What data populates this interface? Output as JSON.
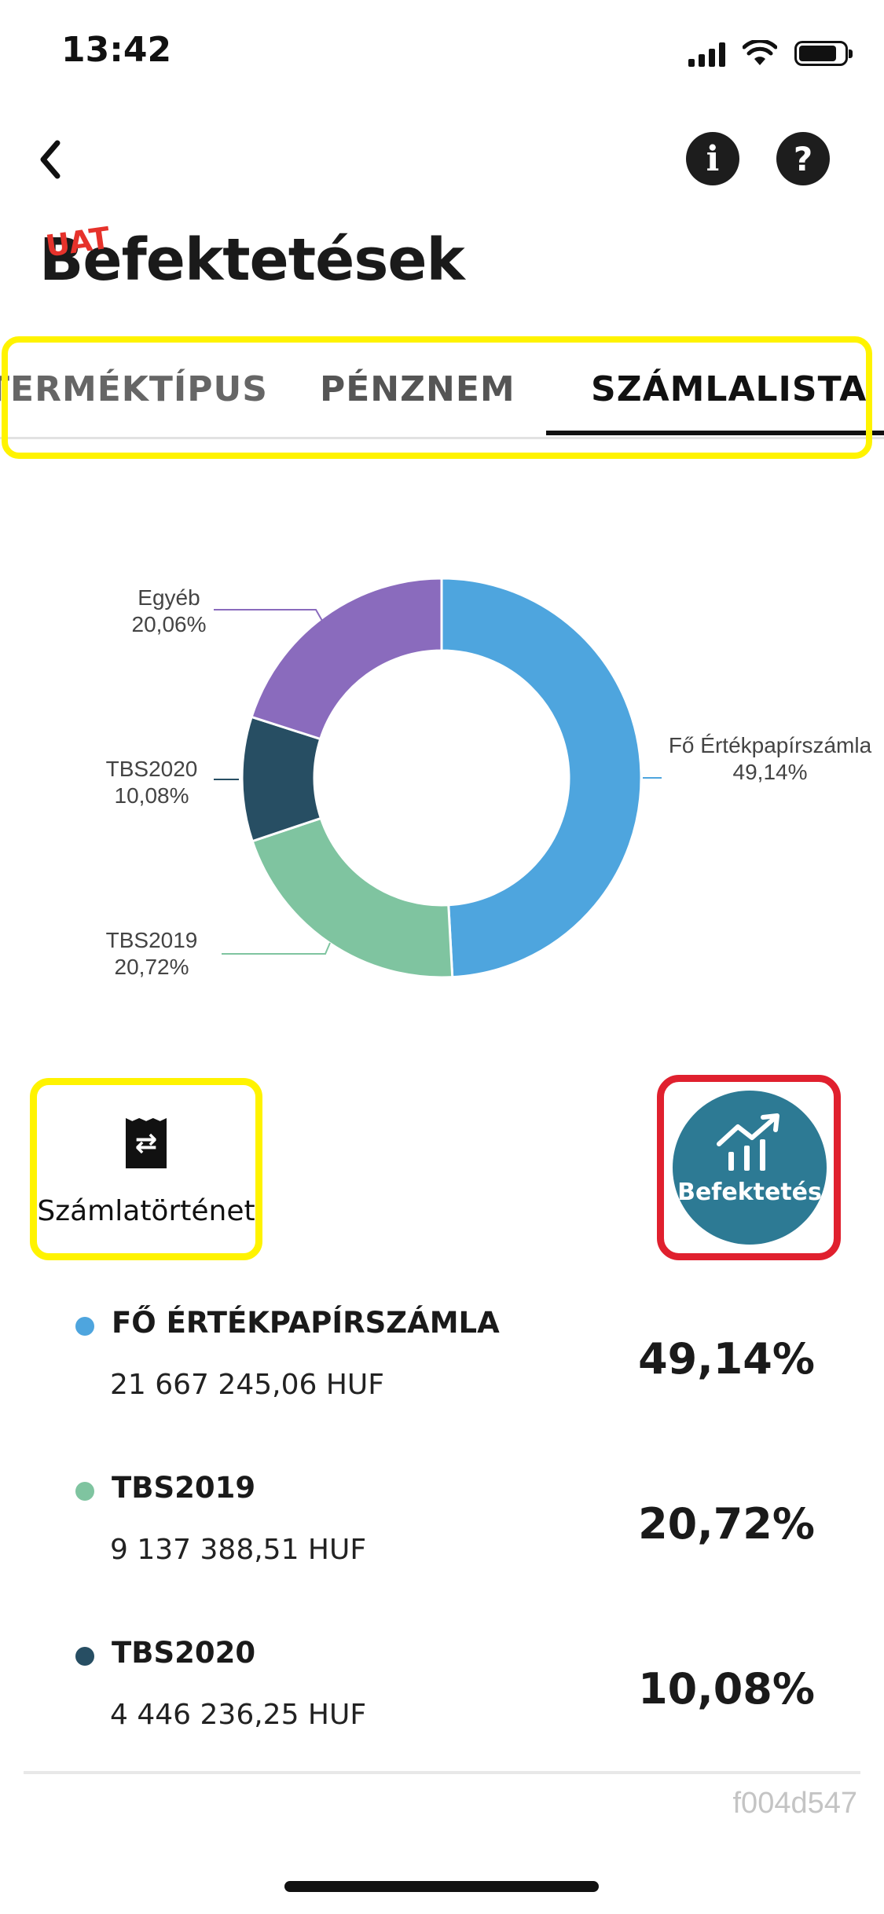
{
  "status_bar": {
    "time": "13:42"
  },
  "header": {
    "title": "Befektetések",
    "env_badge": "UAT"
  },
  "tabs": [
    {
      "label": "TERMÉKTÍPUS",
      "active": false
    },
    {
      "label": "PÉNZNEM",
      "active": false
    },
    {
      "label": "SZÁMLALISTA",
      "active": true
    }
  ],
  "chart_data": {
    "type": "pie",
    "categories": [
      "Fő Értékpapírszámla",
      "TBS2019",
      "TBS2020",
      "Egyéb"
    ],
    "values": [
      49.14,
      20.72,
      10.08,
      20.06
    ],
    "colors": [
      "#4ea5de",
      "#7fc4a0",
      "#274e63",
      "#8a6bbd"
    ],
    "labels": [
      {
        "name": "Fő Értékpapírszámla",
        "value": "49,14%"
      },
      {
        "name": "TBS2019",
        "value": "20,72%"
      },
      {
        "name": "TBS2020",
        "value": "10,08%"
      },
      {
        "name": "Egyéb",
        "value": "20,06%"
      }
    ]
  },
  "actions": {
    "history_label": "Számlatörténet",
    "invest_label": "Befektetés"
  },
  "accounts": [
    {
      "name": "FŐ ÉRTÉKPAPÍRSZÁMLA",
      "amount": "21 667 245,06 HUF",
      "percent": "49,14%",
      "color": "#4ea5de"
    },
    {
      "name": "TBS2019",
      "amount": "9 137 388,51 HUF",
      "percent": "20,72%",
      "color": "#7fc4a0"
    },
    {
      "name": "TBS2020",
      "amount": "4 446 236,25 HUF",
      "percent": "10,08%",
      "color": "#274e63"
    }
  ],
  "footer": {
    "build_id": "f004d547"
  }
}
